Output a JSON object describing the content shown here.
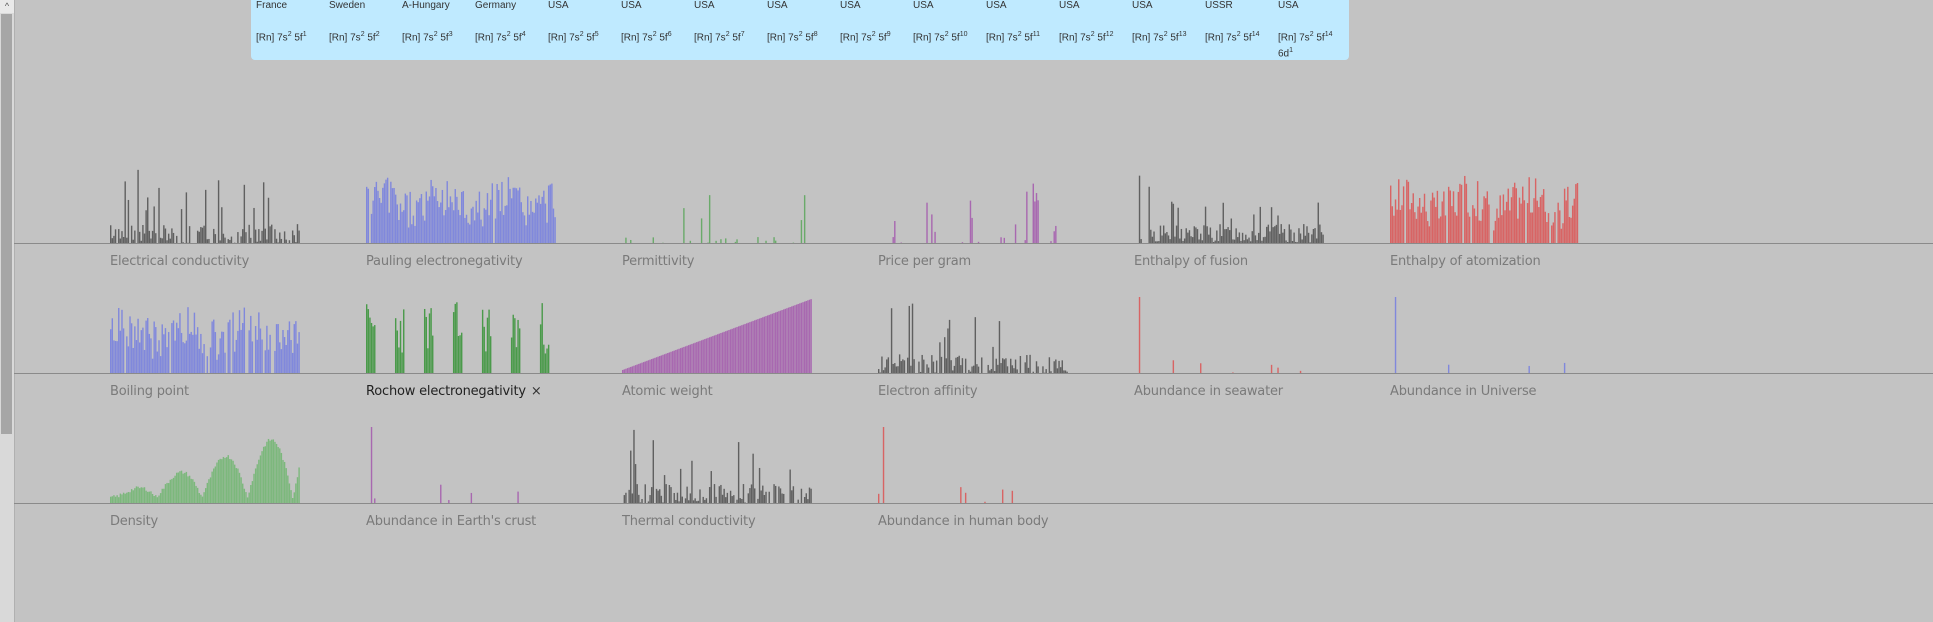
{
  "info_panel": {
    "columns": [
      {
        "country": "France",
        "config_base": "[Rn] 7s",
        "s": "2",
        "f": "1",
        "extra": ""
      },
      {
        "country": "Sweden",
        "config_base": "[Rn] 7s",
        "s": "2",
        "f": "2",
        "extra": ""
      },
      {
        "country": "A-Hungary",
        "config_base": "[Rn] 7s",
        "s": "2",
        "f": "3",
        "extra": ""
      },
      {
        "country": "Germany",
        "config_base": "[Rn] 7s",
        "s": "2",
        "f": "4",
        "extra": ""
      },
      {
        "country": "USA",
        "config_base": "[Rn] 7s",
        "s": "2",
        "f": "5",
        "extra": ""
      },
      {
        "country": "USA",
        "config_base": "[Rn] 7s",
        "s": "2",
        "f": "6",
        "extra": ""
      },
      {
        "country": "USA",
        "config_base": "[Rn] 7s",
        "s": "2",
        "f": "7",
        "extra": ""
      },
      {
        "country": "USA",
        "config_base": "[Rn] 7s",
        "s": "2",
        "f": "8",
        "extra": ""
      },
      {
        "country": "USA",
        "config_base": "[Rn] 7s",
        "s": "2",
        "f": "9",
        "extra": ""
      },
      {
        "country": "USA",
        "config_base": "[Rn] 7s",
        "s": "2",
        "f": "10",
        "extra": ""
      },
      {
        "country": "USA",
        "config_base": "[Rn] 7s",
        "s": "2",
        "f": "11",
        "extra": ""
      },
      {
        "country": "USA",
        "config_base": "[Rn] 7s",
        "s": "2",
        "f": "12",
        "extra": ""
      },
      {
        "country": "USA",
        "config_base": "[Rn] 7s",
        "s": "2",
        "f": "13",
        "extra": ""
      },
      {
        "country": "USSR",
        "config_base": "[Rn] 7s",
        "s": "2",
        "f": "14",
        "extra": ""
      },
      {
        "country": "USA",
        "config_base": "[Rn] 7s",
        "s": "2",
        "f": "14",
        "extra": "6d",
        "extra_sup": "1"
      }
    ]
  },
  "properties": [
    {
      "label": "Electrical conductivity",
      "color": "#606060",
      "pattern": "spiky",
      "seed": 3
    },
    {
      "label": "Pauling electronegativity",
      "color": "#8088dc",
      "pattern": "dense",
      "seed": 5
    },
    {
      "label": "Permittivity",
      "color": "#6aaa6a",
      "pattern": "sparse",
      "seed": 7
    },
    {
      "label": "Price per gram",
      "color": "#a868b0",
      "pattern": "sparse2",
      "seed": 11
    },
    {
      "label": "Enthalpy of fusion",
      "color": "#606060",
      "pattern": "mixed",
      "seed": 13
    },
    {
      "label": "Enthalpy of atomization",
      "color": "#d86464",
      "pattern": "dense",
      "seed": 17
    },
    {
      "label": "Boiling point",
      "color": "#8088dc",
      "pattern": "dense",
      "seed": 19
    },
    {
      "label": "Rochow electronegativity",
      "color": "#4a9a4a",
      "pattern": "groups",
      "seed": 23,
      "active": true
    },
    {
      "label": "Atomic weight",
      "color": "#a868b0",
      "pattern": "ramp",
      "seed": 29
    },
    {
      "label": "Electron affinity",
      "color": "#606060",
      "pattern": "spiky",
      "seed": 31
    },
    {
      "label": "Abundance in seawater",
      "color": "#d86464",
      "pattern": "single",
      "seed": 37
    },
    {
      "label": "Abundance in Universe",
      "color": "#8088dc",
      "pattern": "single",
      "seed": 41
    },
    {
      "label": "Density",
      "color": "#7cb87c",
      "pattern": "wave",
      "seed": 43
    },
    {
      "label": "Abundance in Earth's crust",
      "color": "#a868b0",
      "pattern": "single",
      "seed": 47
    },
    {
      "label": "Thermal conductivity",
      "color": "#606060",
      "pattern": "spiky",
      "seed": 53
    },
    {
      "label": "Abundance in human body",
      "color": "#d86464",
      "pattern": "single",
      "seed": 59
    }
  ],
  "close_glyph": "×",
  "scroll_up_glyph": "^"
}
